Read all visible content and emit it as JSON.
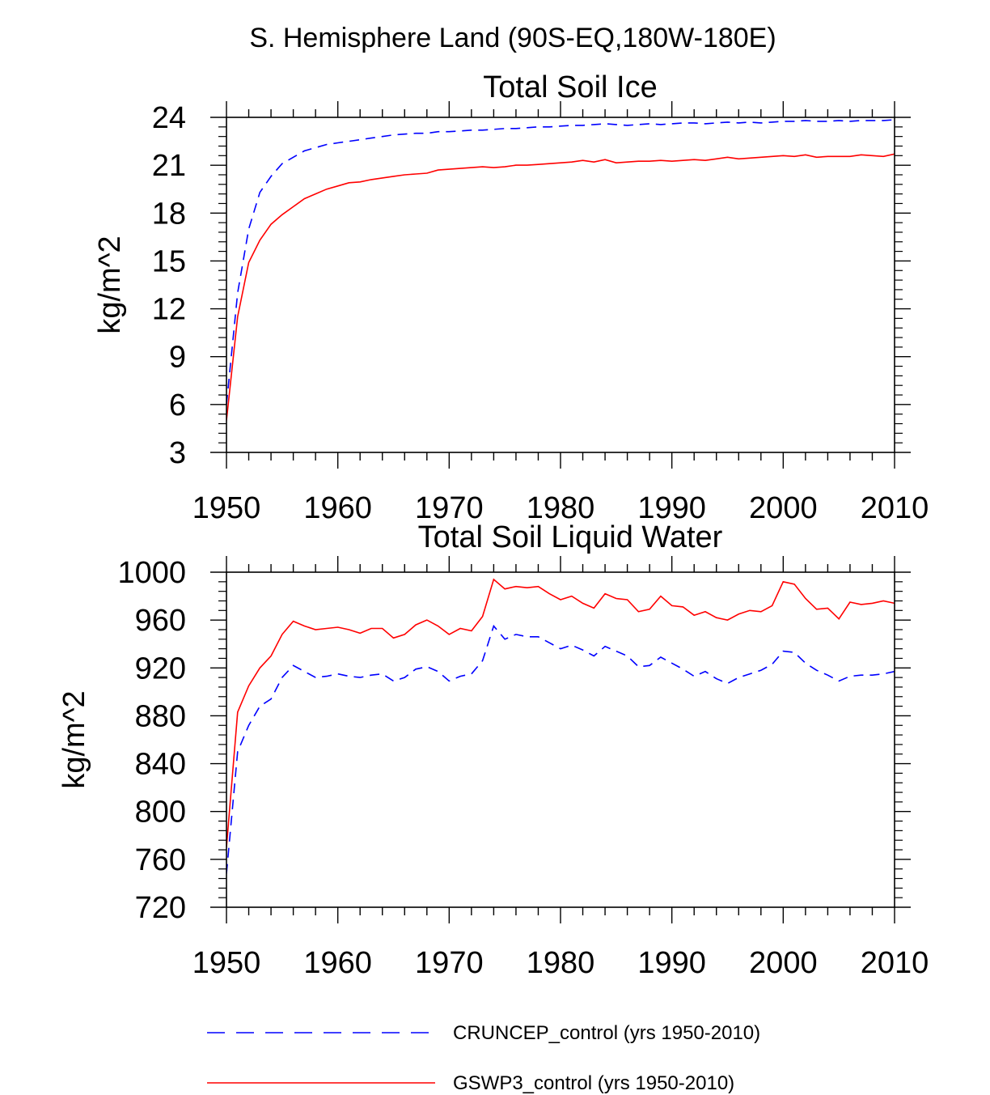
{
  "suptitle": "S. Hemisphere Land (90S-EQ,180W-180E)",
  "legend": {
    "items": [
      {
        "label": "CRUNCEP_control (yrs 1950-2010)",
        "color": "#0000ff",
        "dash": "dashed"
      },
      {
        "label": "GSWP3_control (yrs 1950-2010)",
        "color": "#ff0000",
        "dash": "solid"
      }
    ]
  },
  "chart_data": [
    {
      "type": "line",
      "title": "Total Soil Ice",
      "xlabel": "",
      "ylabel": "kg/m^2",
      "xlim": [
        1950,
        2010
      ],
      "ylim": [
        3,
        24
      ],
      "xticks": [
        1950,
        1960,
        1970,
        1980,
        1990,
        2000,
        2010
      ],
      "yticks": [
        3,
        6,
        9,
        12,
        15,
        18,
        21,
        24
      ],
      "x": [
        1950,
        1951,
        1952,
        1953,
        1954,
        1955,
        1956,
        1957,
        1958,
        1959,
        1960,
        1961,
        1962,
        1963,
        1964,
        1965,
        1966,
        1967,
        1968,
        1969,
        1970,
        1971,
        1972,
        1973,
        1974,
        1975,
        1976,
        1977,
        1978,
        1979,
        1980,
        1981,
        1982,
        1983,
        1984,
        1985,
        1986,
        1987,
        1988,
        1989,
        1990,
        1991,
        1992,
        1993,
        1994,
        1995,
        1996,
        1997,
        1998,
        1999,
        2000,
        2001,
        2002,
        2003,
        2004,
        2005,
        2006,
        2007,
        2008,
        2009,
        2010
      ],
      "series": [
        {
          "name": "CRUNCEP_control (yrs 1950-2010)",
          "color": "#0000ff",
          "dash": "dashed",
          "values": [
            6.0,
            13.0,
            17.0,
            19.3,
            20.3,
            21.1,
            21.5,
            21.9,
            22.1,
            22.3,
            22.4,
            22.5,
            22.6,
            22.7,
            22.8,
            22.9,
            22.95,
            23.0,
            23.0,
            23.1,
            23.1,
            23.15,
            23.2,
            23.2,
            23.25,
            23.3,
            23.3,
            23.35,
            23.4,
            23.4,
            23.45,
            23.5,
            23.5,
            23.55,
            23.6,
            23.55,
            23.5,
            23.55,
            23.6,
            23.55,
            23.6,
            23.65,
            23.65,
            23.6,
            23.65,
            23.7,
            23.65,
            23.7,
            23.65,
            23.7,
            23.75,
            23.75,
            23.8,
            23.75,
            23.75,
            23.8,
            23.75,
            23.8,
            23.8,
            23.8,
            23.85
          ]
        },
        {
          "name": "GSWP3_control (yrs 1950-2010)",
          "color": "#ff0000",
          "dash": "solid",
          "values": [
            5.0,
            11.5,
            14.9,
            16.3,
            17.3,
            17.9,
            18.4,
            18.9,
            19.2,
            19.5,
            19.7,
            19.9,
            19.95,
            20.1,
            20.2,
            20.3,
            20.4,
            20.45,
            20.5,
            20.7,
            20.75,
            20.8,
            20.85,
            20.9,
            20.85,
            20.9,
            21.0,
            21.0,
            21.05,
            21.1,
            21.15,
            21.2,
            21.3,
            21.2,
            21.35,
            21.15,
            21.2,
            21.25,
            21.25,
            21.3,
            21.25,
            21.3,
            21.35,
            21.3,
            21.4,
            21.5,
            21.4,
            21.45,
            21.5,
            21.55,
            21.6,
            21.55,
            21.65,
            21.5,
            21.55,
            21.55,
            21.55,
            21.65,
            21.6,
            21.55,
            21.7
          ]
        }
      ]
    },
    {
      "type": "line",
      "title": "Total Soil Liquid Water",
      "xlabel": "",
      "ylabel": "kg/m^2",
      "xlim": [
        1950,
        2010
      ],
      "ylim": [
        720,
        1000
      ],
      "xticks": [
        1950,
        1960,
        1970,
        1980,
        1990,
        2000,
        2010
      ],
      "yticks": [
        720,
        760,
        800,
        840,
        880,
        920,
        960,
        1000
      ],
      "x": [
        1950,
        1951,
        1952,
        1953,
        1954,
        1955,
        1956,
        1957,
        1958,
        1959,
        1960,
        1961,
        1962,
        1963,
        1964,
        1965,
        1966,
        1967,
        1968,
        1969,
        1970,
        1971,
        1972,
        1973,
        1974,
        1975,
        1976,
        1977,
        1978,
        1979,
        1980,
        1981,
        1982,
        1983,
        1984,
        1985,
        1986,
        1987,
        1988,
        1989,
        1990,
        1991,
        1992,
        1993,
        1994,
        1995,
        1996,
        1997,
        1998,
        1999,
        2000,
        2001,
        2002,
        2003,
        2004,
        2005,
        2006,
        2007,
        2008,
        2009,
        2010
      ],
      "series": [
        {
          "name": "CRUNCEP_control (yrs 1950-2010)",
          "color": "#0000ff",
          "dash": "dashed",
          "values": [
            748,
            850,
            872,
            888,
            894,
            912,
            922,
            917,
            912,
            913,
            915,
            913,
            912,
            914,
            915,
            909,
            912,
            919,
            921,
            917,
            909,
            913,
            915,
            926,
            955,
            944,
            948,
            946,
            946,
            941,
            936,
            939,
            935,
            930,
            938,
            934,
            930,
            921,
            922,
            929,
            924,
            919,
            913,
            917,
            911,
            907,
            912,
            915,
            918,
            923,
            934,
            933,
            924,
            918,
            914,
            909,
            913,
            914,
            914,
            915,
            917
          ]
        },
        {
          "name": "GSWP3_control (yrs 1950-2010)",
          "color": "#ff0000",
          "dash": "solid",
          "values": [
            770,
            883,
            905,
            920,
            930,
            948,
            959,
            955,
            952,
            953,
            954,
            952,
            949,
            953,
            953,
            945,
            948,
            956,
            960,
            955,
            948,
            953,
            951,
            963,
            994,
            986,
            988,
            987,
            988,
            982,
            977,
            980,
            974,
            970,
            982,
            978,
            977,
            967,
            969,
            980,
            972,
            971,
            964,
            967,
            962,
            960,
            965,
            968,
            967,
            972,
            992,
            990,
            978,
            969,
            970,
            961,
            975,
            973,
            974,
            976,
            974
          ]
        }
      ]
    }
  ]
}
